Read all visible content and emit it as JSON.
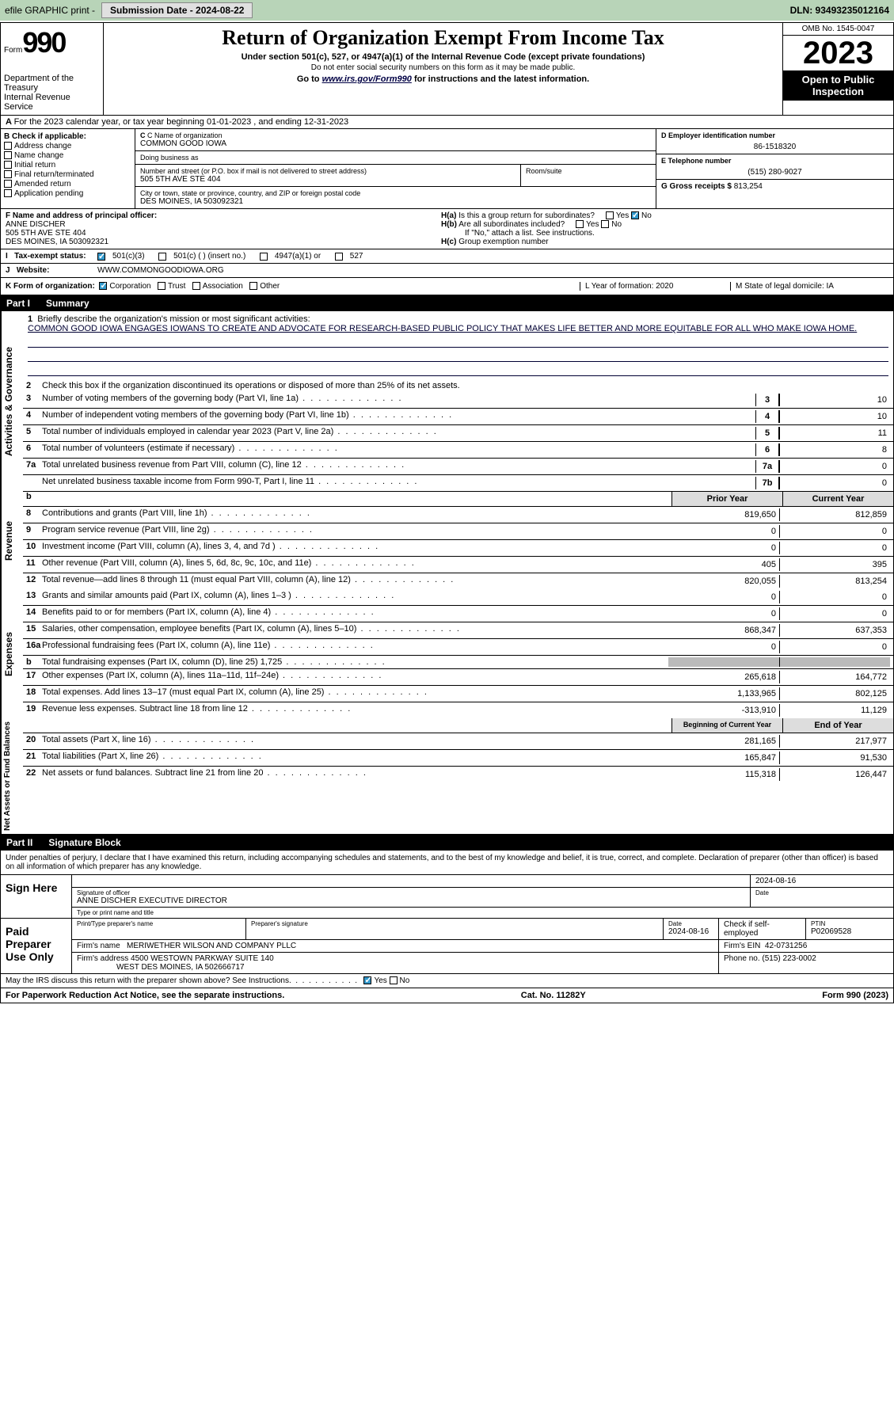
{
  "top": {
    "efile": "efile GRAPHIC print -",
    "submission": "Submission Date - 2024-08-22",
    "dln": "DLN: 93493235012164"
  },
  "header": {
    "form": "990",
    "form_prefix": "Form",
    "title": "Return of Organization Exempt From Income Tax",
    "sub": "Under section 501(c), 527, or 4947(a)(1) of the Internal Revenue Code (except private foundations)",
    "note": "Do not enter social security numbers on this form as it may be made public.",
    "goto_pre": "Go to ",
    "goto_url": "www.irs.gov/Form990",
    "goto_post": " for instructions and the latest information.",
    "omb": "OMB No. 1545-0047",
    "year": "2023",
    "open": "Open to Public Inspection",
    "dept": "Department of the Treasury",
    "irs": "Internal Revenue Service"
  },
  "a": {
    "text": "For the 2023 calendar year, or tax year beginning 01-01-2023    , and ending 12-31-2023"
  },
  "b": {
    "label": "B Check if applicable:",
    "opts": [
      "Address change",
      "Name change",
      "Initial return",
      "Final return/terminated",
      "Amended return",
      "Application pending"
    ]
  },
  "c": {
    "name_lbl": "C Name of organization",
    "name": "COMMON GOOD IOWA",
    "dba_lbl": "Doing business as",
    "dba": "",
    "street_lbl": "Number and street (or P.O. box if mail is not delivered to street address)",
    "street": "505 5TH AVE STE 404",
    "room_lbl": "Room/suite",
    "city_lbl": "City or town, state or province, country, and ZIP or foreign postal code",
    "city": "DES MOINES, IA  503092321"
  },
  "right": {
    "d_lbl": "D Employer identification number",
    "d": "86-1518320",
    "e_lbl": "E Telephone number",
    "e": "(515) 280-9027",
    "g_lbl": "G Gross receipts $",
    "g": "813,254"
  },
  "f": {
    "lbl": "F  Name and address of principal officer:",
    "name": "ANNE DISCHER",
    "addr1": "505 5TH AVE STE 404",
    "addr2": "DES MOINES, IA  503092321"
  },
  "h": {
    "a": "Is this a group return for subordinates?",
    "b": "Are all subordinates included?",
    "b2": "If \"No,\" attach a list. See instructions.",
    "c": "Group exemption number"
  },
  "i": {
    "lbl": "Tax-exempt status:",
    "o1": "501(c)(3)",
    "o2": "501(c) (  ) (insert no.)",
    "o3": "4947(a)(1) or",
    "o4": "527"
  },
  "j": {
    "lbl": "Website:",
    "url": "WWW.COMMONGOODIOWA.ORG"
  },
  "k": {
    "lbl": "K Form of organization:",
    "opts": [
      "Corporation",
      "Trust",
      "Association",
      "Other"
    ],
    "l": "L Year of formation: 2020",
    "m": "M State of legal domicile: IA"
  },
  "part1": {
    "num": "Part I",
    "title": "Summary"
  },
  "mission": {
    "lbl": "Briefly describe the organization's mission or most significant activities:",
    "text": "COMMON GOOD IOWA ENGAGES IOWANS TO CREATE AND ADVOCATE FOR RESEARCH-BASED PUBLIC POLICY THAT MAKES LIFE BETTER AND MORE EQUITABLE FOR ALL WHO MAKE IOWA HOME."
  },
  "l1": {
    "n": "1",
    "n2": "2",
    "t2": "Check this box          if the organization discontinued its operations or disposed of more than 25% of its net assets."
  },
  "lines_ag": [
    {
      "n": "3",
      "t": "Number of voting members of the governing body (Part VI, line 1a)",
      "nb": "3",
      "v": "10"
    },
    {
      "n": "4",
      "t": "Number of independent voting members of the governing body (Part VI, line 1b)",
      "nb": "4",
      "v": "10"
    },
    {
      "n": "5",
      "t": "Total number of individuals employed in calendar year 2023 (Part V, line 2a)",
      "nb": "5",
      "v": "11"
    },
    {
      "n": "6",
      "t": "Total number of volunteers (estimate if necessary)",
      "nb": "6",
      "v": "8"
    },
    {
      "n": "7a",
      "t": "Total unrelated business revenue from Part VIII, column (C), line 12",
      "nb": "7a",
      "v": "0"
    },
    {
      "n": "",
      "t": "Net unrelated business taxable income from Form 990-T, Part I, line 11",
      "nb": "7b",
      "v": "0"
    }
  ],
  "col_hdr": {
    "prior": "Prior Year",
    "current": "Current Year",
    "begin": "Beginning of Current Year",
    "end": "End of Year"
  },
  "vtabs": {
    "ag": "Activities & Governance",
    "rev": "Revenue",
    "exp": "Expenses",
    "na": "Net Assets or Fund Balances"
  },
  "revenue": [
    {
      "n": "8",
      "t": "Contributions and grants (Part VIII, line 1h)",
      "p": "819,650",
      "c": "812,859"
    },
    {
      "n": "9",
      "t": "Program service revenue (Part VIII, line 2g)",
      "p": "0",
      "c": "0"
    },
    {
      "n": "10",
      "t": "Investment income (Part VIII, column (A), lines 3, 4, and 7d )",
      "p": "0",
      "c": "0"
    },
    {
      "n": "11",
      "t": "Other revenue (Part VIII, column (A), lines 5, 6d, 8c, 9c, 10c, and 11e)",
      "p": "405",
      "c": "395"
    },
    {
      "n": "12",
      "t": "Total revenue—add lines 8 through 11 (must equal Part VIII, column (A), line 12)",
      "p": "820,055",
      "c": "813,254"
    }
  ],
  "expenses": [
    {
      "n": "13",
      "t": "Grants and similar amounts paid (Part IX, column (A), lines 1–3 )",
      "p": "0",
      "c": "0"
    },
    {
      "n": "14",
      "t": "Benefits paid to or for members (Part IX, column (A), line 4)",
      "p": "0",
      "c": "0"
    },
    {
      "n": "15",
      "t": "Salaries, other compensation, employee benefits (Part IX, column (A), lines 5–10)",
      "p": "868,347",
      "c": "637,353"
    },
    {
      "n": "16a",
      "t": "Professional fundraising fees (Part IX, column (A), line 11e)",
      "p": "0",
      "c": "0"
    },
    {
      "n": "b",
      "t": "Total fundraising expenses (Part IX, column (D), line 25) 1,725",
      "p": "",
      "c": "",
      "grey": true
    },
    {
      "n": "17",
      "t": "Other expenses (Part IX, column (A), lines 11a–11d, 11f–24e)",
      "p": "265,618",
      "c": "164,772"
    },
    {
      "n": "18",
      "t": "Total expenses. Add lines 13–17 (must equal Part IX, column (A), line 25)",
      "p": "1,133,965",
      "c": "802,125"
    },
    {
      "n": "19",
      "t": "Revenue less expenses. Subtract line 18 from line 12",
      "p": "-313,910",
      "c": "11,129"
    }
  ],
  "netassets": [
    {
      "n": "20",
      "t": "Total assets (Part X, line 16)",
      "p": "281,165",
      "c": "217,977"
    },
    {
      "n": "21",
      "t": "Total liabilities (Part X, line 26)",
      "p": "165,847",
      "c": "91,530"
    },
    {
      "n": "22",
      "t": "Net assets or fund balances. Subtract line 21 from line 20",
      "p": "115,318",
      "c": "126,447"
    }
  ],
  "part2": {
    "num": "Part II",
    "title": "Signature Block"
  },
  "sig": {
    "note": "Under penalties of perjury, I declare that I have examined this return, including accompanying schedules and statements, and to the best of my knowledge and belief, it is true, correct, and complete. Declaration of preparer (other than officer) is based on all information of which preparer has any knowledge.",
    "sign_here": "Sign Here",
    "sig_lbl": "Signature of officer",
    "officer": "ANNE DISCHER  EXECUTIVE DIRECTOR",
    "type_lbl": "Type or print name and title",
    "date_lbl": "Date",
    "date": "2024-08-16",
    "paid": "Paid Preparer Use Only",
    "prep_name_lbl": "Print/Type preparer's name",
    "prep_sig_lbl": "Preparer's signature",
    "prep_date": "2024-08-16",
    "check_lbl": "Check        if self-employed",
    "ptin_lbl": "PTIN",
    "ptin": "P02069528",
    "firm_name_lbl": "Firm's name",
    "firm_name": "MERIWETHER WILSON AND COMPANY PLLC",
    "firm_ein_lbl": "Firm's EIN",
    "firm_ein": "42-0731256",
    "firm_addr_lbl": "Firm's address",
    "firm_addr1": "4500 WESTOWN PARKWAY SUITE 140",
    "firm_addr2": "WEST DES MOINES, IA  502666717",
    "phone_lbl": "Phone no.",
    "phone": "(515) 223-0002",
    "irs_q": "May the IRS discuss this return with the preparer shown above? See Instructions."
  },
  "foot": {
    "l": "For Paperwork Reduction Act Notice, see the separate instructions.",
    "c": "Cat. No. 11282Y",
    "r": "Form 990 (2023)"
  }
}
